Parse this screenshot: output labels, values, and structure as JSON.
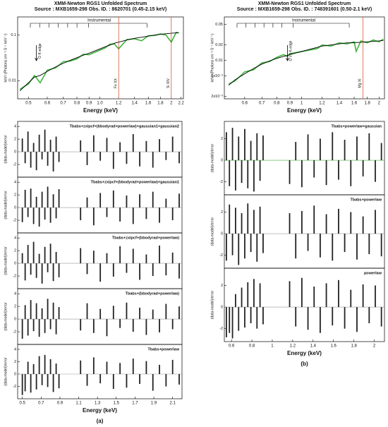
{
  "chart_data": [
    {
      "type": "line",
      "title": "XMM-Newton RGS1 Unfolded Spectrum",
      "subtitle": "Source : MXB1659-298 Obs. ID. : 8620701 (0.45-2.15 keV)",
      "xlabel": "Energy (keV)",
      "ylabel": "keV² (Photons cm⁻² S⁻¹ keV⁻¹)",
      "xscale": "log",
      "yscale": "log",
      "xlim": [
        0.45,
        2.25
      ],
      "ylim": [
        0.004,
        0.25
      ],
      "xticks": [
        0.5,
        0.6,
        0.7,
        0.8,
        0.9,
        {
          "value": 1,
          "label": "1.0"
        },
        1.2,
        1.4,
        1.6,
        1.8,
        2,
        2.2
      ],
      "yticks": [
        0.01,
        0.1
      ],
      "instrumental": "Instrumental",
      "x": [
        0.46,
        0.5,
        0.53,
        0.56,
        0.6,
        0.65,
        0.7,
        0.75,
        0.8,
        0.85,
        0.9,
        1.05,
        1.1,
        1.15,
        1.2,
        1.3,
        1.4,
        1.5,
        1.6,
        1.7,
        1.8,
        1.9,
        2.0,
        2.1,
        2.15
      ],
      "series": [
        {
          "color": "#3cb43c",
          "values": [
            0.0065,
            0.0085,
            0.013,
            0.009,
            0.017,
            0.019,
            0.026,
            0.027,
            0.03,
            0.038,
            0.037,
            0.052,
            0.063,
            0.064,
            0.05,
            0.08,
            0.083,
            0.075,
            0.097,
            0.098,
            0.106,
            0.1,
            0.07,
            0.115,
            0.11
          ]
        },
        {
          "color": "#000000",
          "values": [
            0.006,
            0.009,
            0.012,
            0.013,
            0.016,
            0.02,
            0.024,
            0.028,
            0.032,
            0.036,
            0.04,
            0.055,
            0.06,
            0.066,
            0.07,
            0.078,
            0.085,
            0.09,
            0.095,
            0.1,
            0.104,
            0.107,
            0.11,
            0.112,
            0.114
          ]
        }
      ],
      "annotations": [
        {
          "text": "O K-edge",
          "x": 0.54,
          "arrow": true
        },
        {
          "text": "Fe XX",
          "x": 1.2
        },
        {
          "text": "Si XIV",
          "x": 2.0
        }
      ]
    },
    {
      "type": "line",
      "title": "XMM-Newton RGS1 Unfolded Spectrum",
      "subtitle": "Source : MXB1659-298 Obs. ID. : 748391601 (0.50-2.1 keV)",
      "xlabel": "Energy (keV)",
      "ylabel": "keV² (Photons cm⁻² S⁻¹ keV⁻¹)",
      "xscale": "log",
      "yscale": "log",
      "xlim": [
        0.5,
        2.1
      ],
      "ylim": [
        0.0018,
        0.07
      ],
      "xticks": [
        0.6,
        0.7,
        0.8,
        0.9,
        1,
        1.2,
        1.4,
        1.6,
        1.8,
        2
      ],
      "yticks": [
        {
          "value": 0.002,
          "label": "2x10⁻³"
        },
        {
          "value": 0.005,
          "label": "5x10⁻³"
        },
        0.01,
        0.02,
        0.05
      ],
      "instrumental": "Instrumental",
      "x": [
        0.52,
        0.55,
        0.6,
        0.65,
        0.7,
        0.75,
        0.8,
        0.85,
        0.88,
        0.9,
        1.15,
        1.2,
        1.3,
        1.4,
        1.5,
        1.6,
        1.63,
        1.7,
        1.8,
        1.9,
        2.0,
        2.08
      ],
      "series": [
        {
          "color": "#3cb43c",
          "values": [
            0.0035,
            0.004,
            0.006,
            0.0066,
            0.009,
            0.0095,
            0.0115,
            0.013,
            0.012,
            0.0135,
            0.017,
            0.02,
            0.019,
            0.022,
            0.021,
            0.023,
            0.015,
            0.024,
            0.022,
            0.025,
            0.023,
            0.026
          ]
        },
        {
          "color": "#000000",
          "values": [
            0.0033,
            0.0042,
            0.0055,
            0.007,
            0.0085,
            0.0098,
            0.011,
            0.012,
            0.0125,
            0.013,
            0.018,
            0.019,
            0.02,
            0.021,
            0.022,
            0.022,
            0.0223,
            0.0225,
            0.023,
            0.0235,
            0.024,
            0.0245
          ]
        }
      ],
      "annotations": [
        {
          "text": "O VII K-edge",
          "x": 0.88,
          "arrow": true
        },
        {
          "text": "Mg XI",
          "x": 1.73
        }
      ]
    },
    {
      "type": "residual",
      "label": "Tbabs+zxipcf+(bbodyrad+powerlaw)+gaussian1+gaussian2",
      "ylabel": "(data-model)/error",
      "color": "#222222",
      "xlim": [
        0.45,
        2.2
      ],
      "ylim": [
        -4,
        4.8
      ],
      "yticks": [
        -2,
        0,
        2,
        4
      ],
      "x": [
        0.5,
        0.53,
        0.56,
        0.59,
        0.62,
        0.65,
        0.68,
        0.71,
        0.74,
        0.77,
        0.8,
        0.83,
        0.86,
        0.89,
        1.12,
        1.19,
        1.26,
        1.33,
        1.4,
        1.47,
        1.54,
        1.61,
        1.68,
        1.75,
        1.82,
        1.89,
        1.96,
        2.03,
        2.1,
        2.17
      ],
      "values": [
        2.1,
        -1.8,
        3.2,
        -2.5,
        1.4,
        -2.9,
        2.7,
        -1.2,
        3.5,
        -2.2,
        1.9,
        -3.1,
        2.4,
        -1.6,
        1.8,
        -2.1,
        2.6,
        -1.4,
        2.2,
        -2.7,
        1.5,
        -1.9,
        2.8,
        -2.3,
        1.7,
        -2.5,
        2.0,
        -1.3,
        2.4,
        -1.8
      ]
    },
    {
      "type": "residual",
      "label": "Tbabs+zxipcf+(bbodyrad+powerlaw)+gaussian1",
      "ylabel": "(data-model)/error",
      "color": "#222222",
      "xlim": [
        0.45,
        2.2
      ],
      "ylim": [
        -4,
        4.8
      ],
      "yticks": [
        -2,
        0,
        2,
        4
      ],
      "x": [
        0.5,
        0.53,
        0.56,
        0.59,
        0.62,
        0.65,
        0.68,
        0.71,
        0.74,
        0.77,
        0.8,
        0.83,
        0.86,
        0.89,
        1.12,
        1.19,
        1.26,
        1.33,
        1.4,
        1.47,
        1.54,
        1.61,
        1.68,
        1.75,
        1.82,
        1.89,
        1.96,
        2.03,
        2.1,
        2.17
      ],
      "values": [
        -2.3,
        2.8,
        -1.5,
        3.0,
        -2.6,
        1.7,
        -3.0,
        2.5,
        -1.9,
        3.3,
        -2.4,
        2.1,
        -1.7,
        2.9,
        -2.0,
        1.6,
        -2.8,
        2.3,
        -1.5,
        2.7,
        -2.2,
        1.9,
        -2.6,
        2.1,
        -1.8,
        2.5,
        -2.4,
        1.4,
        -2.0,
        2.2
      ]
    },
    {
      "type": "residual",
      "label": "Tbabs+zxipcf+(bbodyrad+powerlaw)",
      "ylabel": "(data-model)/error",
      "color": "#222222",
      "xlim": [
        0.45,
        2.2
      ],
      "ylim": [
        -4,
        4.8
      ],
      "yticks": [
        -2,
        0,
        2,
        4
      ],
      "x": [
        0.5,
        0.53,
        0.56,
        0.59,
        0.62,
        0.65,
        0.68,
        0.71,
        0.74,
        0.77,
        0.8,
        0.83,
        0.86,
        0.89,
        1.12,
        1.19,
        1.26,
        1.33,
        1.4,
        1.47,
        1.54,
        1.61,
        1.68,
        1.75,
        1.82,
        1.89,
        1.96,
        2.03,
        2.1,
        2.17
      ],
      "values": [
        1.6,
        -2.7,
        2.9,
        -1.8,
        3.4,
        -2.3,
        1.5,
        -3.2,
        2.6,
        -1.4,
        3.1,
        -2.8,
        1.8,
        -2.2,
        2.4,
        -1.7,
        2.0,
        -2.9,
        1.6,
        -2.1,
        2.7,
        -1.5,
        2.3,
        -2.6,
        1.4,
        -2.0,
        2.8,
        -1.9,
        1.7,
        -2.4
      ]
    },
    {
      "type": "residual",
      "label": "Tbabs+(bbodyrad+powerlaw)",
      "ylabel": "(data-model)/error",
      "color": "#222222",
      "xlim": [
        0.45,
        2.2
      ],
      "ylim": [
        -4,
        4.8
      ],
      "yticks": [
        -2,
        0,
        2,
        4
      ],
      "x": [
        0.5,
        0.53,
        0.56,
        0.59,
        0.62,
        0.65,
        0.68,
        0.71,
        0.74,
        0.77,
        0.8,
        0.83,
        0.86,
        0.89,
        1.12,
        1.19,
        1.26,
        1.33,
        1.4,
        1.47,
        1.54,
        1.61,
        1.68,
        1.75,
        1.82,
        1.89,
        1.96,
        2.03,
        2.1,
        2.17
      ],
      "values": [
        -3.1,
        2.2,
        -2.6,
        3.0,
        -1.9,
        2.5,
        -2.8,
        1.7,
        -2.2,
        3.2,
        -1.6,
        2.6,
        -2.4,
        1.9,
        -1.8,
        2.5,
        -2.2,
        1.6,
        -2.7,
        2.1,
        -1.4,
        2.6,
        -2.0,
        1.8,
        -2.5,
        1.5,
        -2.1,
        2.4,
        -1.6,
        2.0
      ]
    },
    {
      "type": "residual",
      "label": "Tbabs+powerlaw",
      "ylabel": "(data-model)/error",
      "xlabel": "Energy (keV)",
      "caption": "(a)",
      "color": "#222222",
      "xlim": [
        0.45,
        2.2
      ],
      "ylim": [
        -4,
        4.8
      ],
      "yticks": [
        -2,
        0,
        2,
        4
      ],
      "xticks": [
        0.5,
        0.7,
        0.9,
        1.1,
        1.3,
        1.5,
        1.7,
        1.9,
        2.1
      ],
      "x": [
        0.5,
        0.53,
        0.56,
        0.59,
        0.62,
        0.65,
        0.68,
        0.71,
        0.74,
        0.77,
        0.8,
        0.83,
        0.86,
        0.89,
        1.12,
        1.19,
        1.26,
        1.33,
        1.4,
        1.47,
        1.54,
        1.61,
        1.68,
        1.75,
        1.82,
        1.89,
        1.96,
        2.03,
        2.1,
        2.17
      ],
      "values": [
        -3.4,
        -2.8,
        2.0,
        -3.0,
        1.6,
        -2.5,
        2.9,
        -1.8,
        3.1,
        -2.1,
        2.4,
        -2.9,
        1.7,
        -2.3,
        2.2,
        -1.9,
        2.7,
        -1.5,
        2.0,
        -2.4,
        1.8,
        -2.2,
        2.5,
        -1.6,
        2.1,
        -2.7,
        1.5,
        -2.0,
        2.3,
        -1.7
      ]
    },
    {
      "type": "residual",
      "label": "Tbabs+powerlaw+gaussian",
      "ylabel": "(data-model)/error",
      "color": "#222222",
      "zero_color": "#3cb43c",
      "xlim": [
        0.53,
        2.1
      ],
      "ylim": [
        -3.2,
        3.6
      ],
      "yticks": [
        -2,
        0,
        2
      ],
      "x": [
        0.55,
        0.58,
        0.61,
        0.64,
        0.67,
        0.7,
        0.73,
        0.76,
        0.79,
        0.82,
        0.85,
        0.88,
        0.91,
        1.17,
        1.23,
        1.29,
        1.35,
        1.41,
        1.47,
        1.53,
        1.59,
        1.65,
        1.71,
        1.77,
        1.83,
        1.89,
        1.95,
        2.01,
        2.07
      ],
      "values": [
        2.6,
        -2.4,
        3.0,
        -2.8,
        2.2,
        -2.1,
        2.9,
        -2.6,
        1.8,
        -2.9,
        2.5,
        -1.9,
        2.3,
        -2.2,
        1.7,
        -2.5,
        2.4,
        -1.6,
        2.0,
        -2.3,
        2.6,
        -1.8,
        1.9,
        -2.4,
        2.2,
        -1.5,
        2.5,
        -2.0,
        1.6
      ]
    },
    {
      "type": "residual",
      "label": "Tbabs+powerlaw",
      "ylabel": "(data-model)/error",
      "color": "#222222",
      "xlim": [
        0.53,
        2.1
      ],
      "ylim": [
        -3.2,
        3.6
      ],
      "yticks": [
        -2,
        0,
        2
      ],
      "x": [
        0.55,
        0.58,
        0.61,
        0.64,
        0.67,
        0.7,
        0.73,
        0.76,
        0.79,
        0.82,
        0.85,
        0.88,
        0.91,
        1.17,
        1.23,
        1.29,
        1.35,
        1.41,
        1.47,
        1.53,
        1.59,
        1.65,
        1.71,
        1.77,
        1.83,
        1.89,
        1.95,
        2.01,
        2.07
      ],
      "values": [
        -2.5,
        2.7,
        -2.0,
        2.4,
        -2.9,
        1.9,
        -2.3,
        2.8,
        -1.7,
        2.2,
        -2.6,
        2.5,
        -1.8,
        1.9,
        -2.3,
        2.1,
        -1.6,
        2.6,
        -2.2,
        1.8,
        -2.5,
        2.3,
        -1.7,
        2.0,
        -2.4,
        1.6,
        -1.9,
        2.2,
        -2.1
      ]
    },
    {
      "type": "residual",
      "label": "powerlaw",
      "ylabel": "(data-model)/error",
      "xlabel": "Energy (keV)",
      "caption": "(b)",
      "color": "#222222",
      "xlim": [
        0.53,
        2.1
      ],
      "ylim": [
        -3.2,
        3.6
      ],
      "yticks": [
        -2,
        0,
        2
      ],
      "xticks": [
        0.6,
        0.8,
        1,
        1.2,
        1.4,
        1.6,
        1.8,
        2
      ],
      "x": [
        0.55,
        0.58,
        0.61,
        0.64,
        0.67,
        0.7,
        0.73,
        0.76,
        0.79,
        0.82,
        0.85,
        0.88,
        0.91,
        1.17,
        1.23,
        1.29,
        1.35,
        1.41,
        1.47,
        1.53,
        1.59,
        1.65,
        1.71,
        1.77,
        1.83,
        1.89,
        1.95,
        2.01,
        2.07
      ],
      "values": [
        -2.8,
        -2.4,
        -2.9,
        1.2,
        -2.2,
        1.8,
        -1.9,
        2.3,
        -1.5,
        2.6,
        -2.0,
        2.2,
        -1.6,
        2.4,
        -1.8,
        2.7,
        -2.1,
        1.9,
        -2.4,
        2.2,
        -1.7,
        2.5,
        -2.0,
        1.6,
        -2.3,
        2.1,
        -1.5,
        2.0,
        -1.8
      ]
    }
  ]
}
